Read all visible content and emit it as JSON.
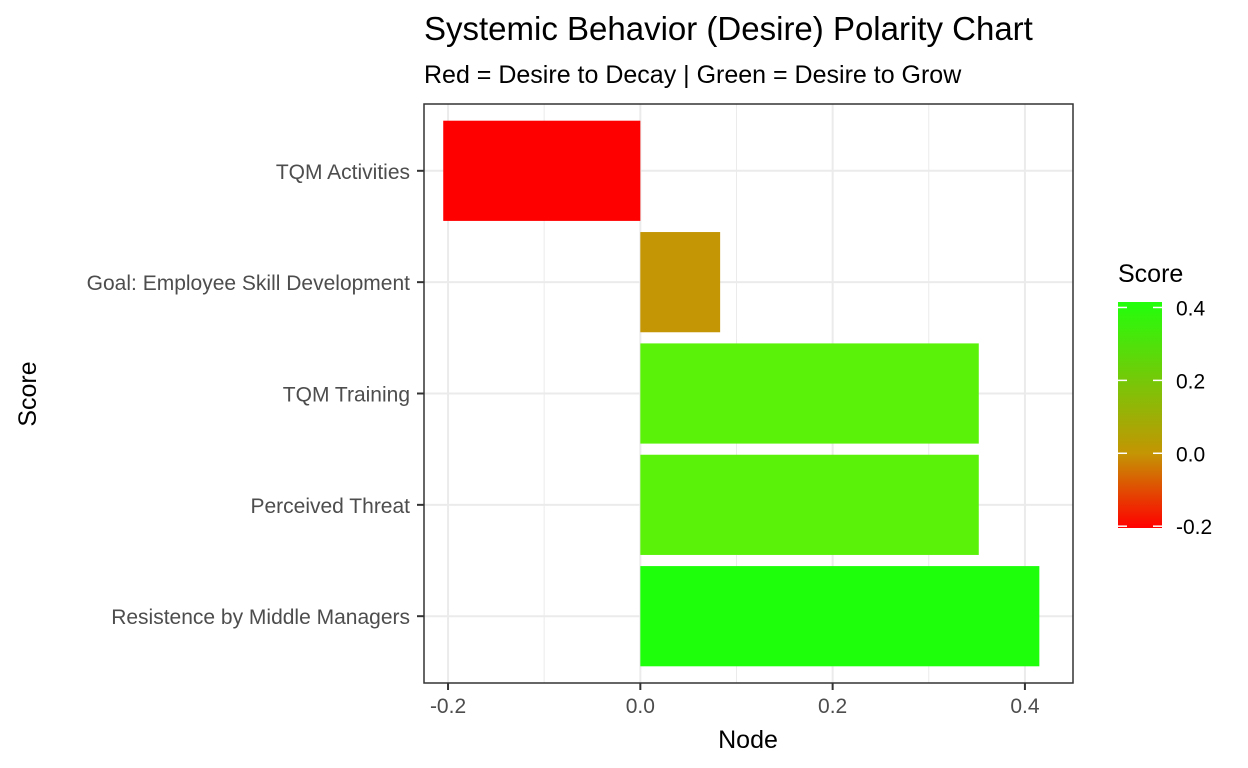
{
  "chart_data": {
    "type": "bar",
    "orientation": "horizontal",
    "title": "Systemic Behavior (Desire) Polarity Chart",
    "subtitle": "Red = Desire to Decay | Green = Desire to Grow",
    "xlabel": "Node",
    "ylabel": "Score",
    "xlim": [
      -0.225,
      0.45
    ],
    "x_ticks": [
      -0.2,
      0.0,
      0.2,
      0.4
    ],
    "x_tick_labels": [
      "-0.2",
      "0.0",
      "0.2",
      "0.4"
    ],
    "grid": true,
    "categories": [
      "TQM Activities",
      "Goal: Employee Skill Development",
      "TQM Training",
      "Perceived Threat",
      "Resistence by Middle Managers"
    ],
    "values": [
      -0.205,
      0.083,
      0.352,
      0.352,
      0.415
    ],
    "colors": [
      "#ff0000",
      "#c49504",
      "#5bf20a",
      "#5bf20a",
      "#1eff0c"
    ],
    "legend": {
      "title": "Score",
      "placement": "right",
      "ticks": [
        -0.2,
        0.0,
        0.2,
        0.4
      ],
      "tick_labels": [
        "-0.2",
        "0.0",
        "0.2",
        "0.4"
      ],
      "range": [
        -0.205,
        0.415
      ],
      "gradient": [
        "#ff0000",
        "#c49504",
        "#22ff0c"
      ]
    }
  }
}
